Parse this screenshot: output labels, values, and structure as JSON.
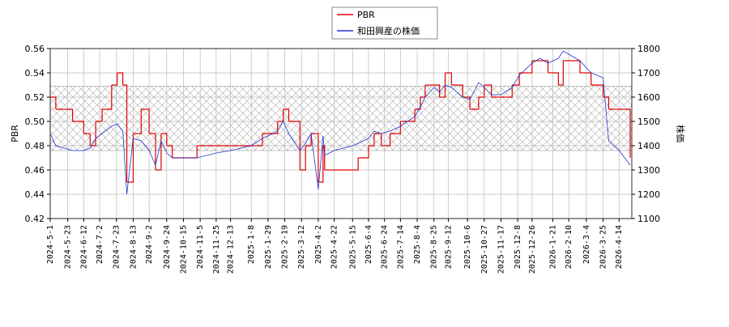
{
  "chart_data": {
    "type": "line",
    "ylabel": "PBR",
    "y2label": "株価",
    "x": [
      "2024-5-1",
      "2024-5-8",
      "2024-5-29",
      "2024-6-12",
      "2024-6-20",
      "2024-6-27",
      "2024-7-5",
      "2024-7-17",
      "2024-7-24",
      "2024-7-31",
      "2024-8-5",
      "2024-8-13",
      "2024-8-23",
      "2024-9-2",
      "2024-9-10",
      "2024-9-17",
      "2024-9-24",
      "2024-10-1",
      "2024-10-21",
      "2024-11-1",
      "2024-11-25",
      "2024-12-13",
      "2025-1-8",
      "2025-1-22",
      "2025-2-10",
      "2025-2-17",
      "2025-2-24",
      "2025-3-10",
      "2025-3-17",
      "2025-3-24",
      "2025-4-2",
      "2025-4-8",
      "2025-4-10",
      "2025-4-22",
      "2025-5-15",
      "2025-5-22",
      "2025-6-4",
      "2025-6-11",
      "2025-6-20",
      "2025-7-1",
      "2025-7-14",
      "2025-8-1",
      "2025-8-8",
      "2025-8-14",
      "2025-8-25",
      "2025-9-1",
      "2025-9-8",
      "2025-9-16",
      "2025-9-30",
      "2025-10-9",
      "2025-10-20",
      "2025-10-27",
      "2025-11-5",
      "2025-11-17",
      "2025-12-1",
      "2025-12-10",
      "2025-12-26",
      "2026-1-5",
      "2026-1-15",
      "2026-1-28",
      "2026-2-3",
      "2026-2-24",
      "2026-3-10",
      "2026-3-25",
      "2026-4-1",
      "2026-4-14",
      "2026-4-28"
    ],
    "series": [
      {
        "name": "PBR",
        "color": "#dd0000",
        "step": true,
        "values": [
          0.52,
          0.51,
          0.5,
          0.49,
          0.48,
          0.5,
          0.51,
          0.53,
          0.54,
          0.53,
          0.45,
          0.49,
          0.51,
          0.49,
          0.46,
          0.49,
          0.48,
          0.47,
          0.47,
          0.48,
          0.48,
          0.48,
          0.48,
          0.49,
          0.5,
          0.51,
          0.5,
          0.46,
          0.48,
          0.49,
          0.45,
          0.48,
          0.46,
          0.46,
          0.46,
          0.47,
          0.48,
          0.49,
          0.48,
          0.49,
          0.5,
          0.51,
          0.52,
          0.53,
          0.53,
          0.52,
          0.54,
          0.53,
          0.52,
          0.51,
          0.52,
          0.53,
          0.52,
          0.52,
          0.53,
          0.54,
          0.55,
          0.55,
          0.54,
          0.53,
          0.55,
          0.54,
          0.53,
          0.52,
          0.51,
          0.51,
          0.47
        ]
      },
      {
        "name": "和田興産の株価",
        "color": "#2233cc",
        "axis": "y2",
        "values": [
          1450,
          1400,
          1380,
          1380,
          1390,
          1430,
          1450,
          1480,
          1490,
          1460,
          1200,
          1430,
          1420,
          1380,
          1320,
          1420,
          1370,
          1350,
          1350,
          1350,
          1370,
          1380,
          1400,
          1430,
          1460,
          1500,
          1450,
          1380,
          1410,
          1450,
          1220,
          1440,
          1360,
          1380,
          1400,
          1410,
          1430,
          1460,
          1450,
          1460,
          1480,
          1520,
          1560,
          1600,
          1640,
          1620,
          1650,
          1640,
          1600,
          1590,
          1660,
          1640,
          1610,
          1610,
          1640,
          1690,
          1740,
          1760,
          1740,
          1760,
          1790,
          1750,
          1700,
          1680,
          1420,
          1380,
          1320
        ]
      }
    ],
    "band": [
      0.476,
      0.529
    ],
    "xlim": [
      "2024-5-1",
      "2026-4-30"
    ],
    "xticks": [
      "2024-5-1",
      "2024-5-23",
      "2024-6-12",
      "2024-7-2",
      "2024-7-23",
      "2024-8-13",
      "2024-9-2",
      "2024-9-24",
      "2024-10-15",
      "2024-11-5",
      "2024-11-25",
      "2024-12-13",
      "2025-1-8",
      "2025-1-29",
      "2025-2-19",
      "2025-3-12",
      "2025-4-2",
      "2025-4-22",
      "2025-5-15",
      "2025-6-4",
      "2025-6-24",
      "2025-7-14",
      "2025-8-4",
      "2025-8-25",
      "2025-9-12",
      "2025-10-6",
      "2025-10-27",
      "2025-11-17",
      "2025-12-8",
      "2025-12-26",
      "2026-1-21",
      "2026-2-10",
      "2026-3-4",
      "2026-3-25",
      "2026-4-14"
    ],
    "ylim": [
      0.42,
      0.56
    ],
    "yticks": [
      {
        "value": 0.42,
        "label": "0.42"
      },
      {
        "value": 0.44,
        "label": "0.44"
      },
      {
        "value": 0.46,
        "label": "0.46"
      },
      {
        "value": 0.48,
        "label": "0.48"
      },
      {
        "value": 0.5,
        "label": "0.50"
      },
      {
        "value": 0.52,
        "label": "0.52"
      },
      {
        "value": 0.54,
        "label": "0.54"
      },
      {
        "value": 0.56,
        "label": "0.56"
      }
    ],
    "y2lim": [
      1100,
      1800
    ],
    "y2ticks": [
      1100,
      1200,
      1300,
      1400,
      1500,
      1600,
      1700,
      1800
    ],
    "grid": true,
    "legend": "top"
  }
}
